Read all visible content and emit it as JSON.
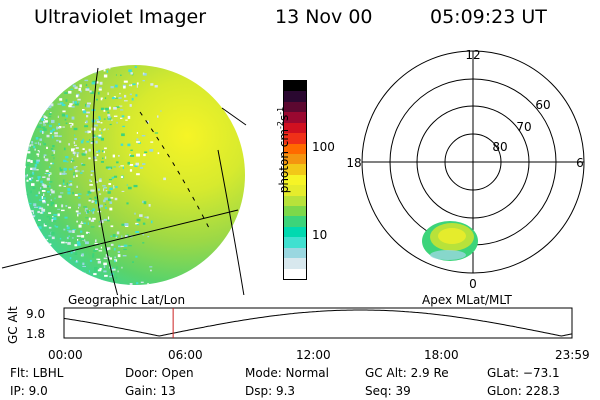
{
  "header": {
    "title": "Ultraviolet Imager",
    "date": "13 Nov 00",
    "time": "05:09:23 UT"
  },
  "colorbar": {
    "label": "photon cm",
    "label_sup1": "-2",
    "label_mid": "s",
    "label_sup2": "-1",
    "ticks": [
      "100",
      "10"
    ],
    "colors": [
      "#ffffff",
      "#d8e8ee",
      "#9ad7e0",
      "#40e0d0",
      "#00d9b0",
      "#3cd47a",
      "#7dd84a",
      "#b8e23a",
      "#e5ec2c",
      "#f6f426",
      "#f2c818",
      "#f49510",
      "#ff6a00",
      "#f03018",
      "#d01020",
      "#9a0830",
      "#5c0830",
      "#2a0830",
      "#000000"
    ]
  },
  "left_panel": {
    "label": "Geographic Lat/Lon"
  },
  "right_panel": {
    "label": "Apex MLat/MLT",
    "mlt_labels": [
      "12",
      "18",
      "6",
      "0"
    ],
    "lat_labels": [
      "60",
      "70",
      "80"
    ]
  },
  "timeline": {
    "ylabel": "GC Alt",
    "y_ticks": [
      "9.0",
      "1.8"
    ],
    "x_ticks": [
      "00:00",
      "06:00",
      "12:00",
      "18:00",
      "23:59"
    ],
    "marker_time_hours": 5.156,
    "marker_color": "#cc2222"
  },
  "info": {
    "flt": "Flt: LBHL",
    "ip": "IP:  9.0",
    "door": "Door: Open",
    "gain": "Gain: 13",
    "mode": "Mode: Normal",
    "dsp": "Dsp:     9.3",
    "gcalt": "GC Alt: 2.9 Re",
    "seq": "Seq: 39",
    "glat": "GLat: −73.1",
    "glon": "GLon: 228.3"
  }
}
